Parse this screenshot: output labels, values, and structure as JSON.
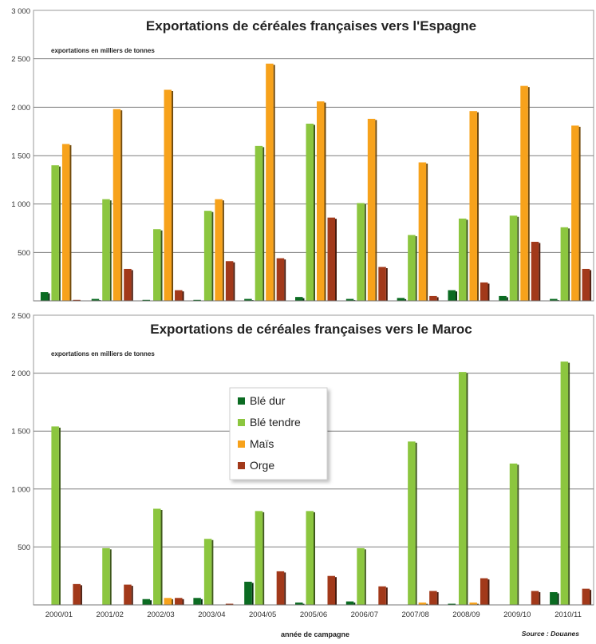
{
  "chart_data": [
    {
      "type": "bar",
      "title": "Exportations de céréales françaises vers l'Espagne",
      "subtitle": "exportations en milliers de tonnes",
      "categories": [
        "2000/01",
        "2001/02",
        "2002/03",
        "2003/04",
        "2004/05",
        "2005/06",
        "2006/07",
        "2007/08",
        "2008/09",
        "2009/10",
        "2010/11"
      ],
      "ylim": [
        0,
        3000
      ],
      "yticks": [
        500,
        1000,
        1500,
        2000,
        2500,
        3000
      ],
      "ytick_labels": [
        "500",
        "1 000",
        "1 500",
        "2 000",
        "2 500",
        "3 000"
      ],
      "grid": true,
      "series": [
        {
          "name": "Blé dur",
          "color": "#0b6b22",
          "values": [
            90,
            20,
            10,
            10,
            20,
            40,
            20,
            30,
            110,
            50,
            20
          ]
        },
        {
          "name": "Blé tendre",
          "color": "#8cc63f",
          "values": [
            1400,
            1050,
            740,
            930,
            1600,
            1830,
            1010,
            680,
            850,
            880,
            760
          ]
        },
        {
          "name": "Maïs",
          "color": "#f7a21b",
          "values": [
            1620,
            1980,
            2180,
            1050,
            2450,
            2060,
            1880,
            1430,
            1960,
            2220,
            1810
          ]
        },
        {
          "name": "Orge",
          "color": "#a2391a",
          "values": [
            10,
            330,
            110,
            410,
            440,
            860,
            350,
            50,
            190,
            610,
            330
          ]
        }
      ]
    },
    {
      "type": "bar",
      "title": "Exportations de céréales françaises vers le Maroc",
      "subtitle": "exportations en milliers de tonnes",
      "xlabel": "année de campagne",
      "source": "Source : Douanes",
      "categories": [
        "2000/01",
        "2001/02",
        "2002/03",
        "2003/04",
        "2004/05",
        "2005/06",
        "2006/07",
        "2007/08",
        "2008/09",
        "2009/10",
        "2010/11"
      ],
      "ylim": [
        0,
        2500
      ],
      "yticks": [
        500,
        1000,
        1500,
        2000,
        2500
      ],
      "ytick_labels": [
        "500",
        "1 000",
        "1 500",
        "2 000",
        "2 500"
      ],
      "grid": true,
      "legend": {
        "placement": "center-left",
        "entries": [
          "Blé dur",
          "Blé tendre",
          "Maïs",
          "Orge"
        ]
      },
      "series": [
        {
          "name": "Blé dur",
          "color": "#0b6b22",
          "values": [
            0,
            0,
            50,
            60,
            200,
            20,
            30,
            0,
            10,
            0,
            110
          ]
        },
        {
          "name": "Blé tendre",
          "color": "#8cc63f",
          "values": [
            1540,
            490,
            830,
            570,
            810,
            810,
            490,
            1410,
            2010,
            1220,
            2100
          ]
        },
        {
          "name": "Maïs",
          "color": "#f7a21b",
          "values": [
            0,
            0,
            60,
            0,
            0,
            0,
            0,
            20,
            20,
            0,
            0
          ]
        },
        {
          "name": "Orge",
          "color": "#a2391a",
          "values": [
            180,
            175,
            60,
            10,
            290,
            250,
            160,
            120,
            230,
            120,
            140
          ]
        }
      ]
    }
  ]
}
